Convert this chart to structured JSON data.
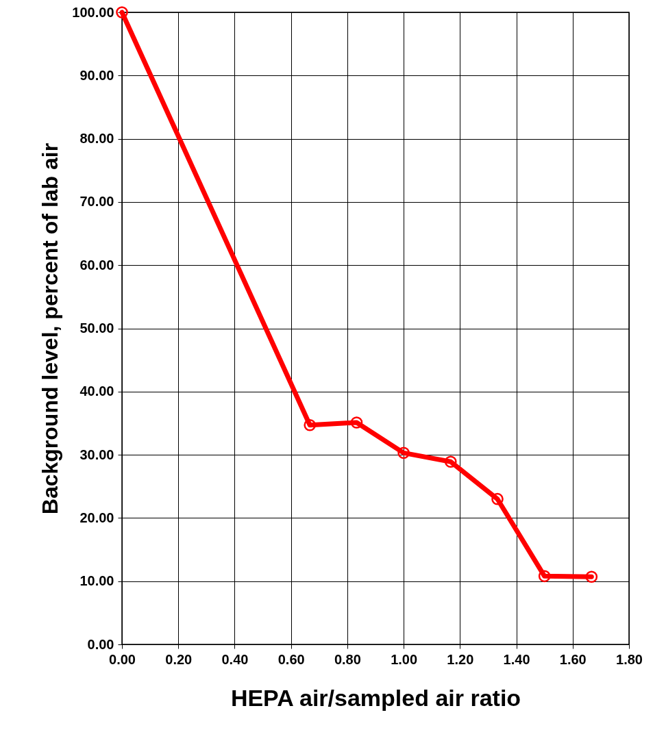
{
  "chart_data": {
    "type": "line",
    "xlabel": "HEPA air/sampled air ratio",
    "ylabel": "Background level, percent of lab air",
    "x": [
      0,
      0.667,
      0.833,
      1.0,
      1.167,
      1.333,
      1.5,
      1.667
    ],
    "series": [
      {
        "color": "#ff0000",
        "values": [
          100,
          34.7,
          35.1,
          30.3,
          28.9,
          23.0,
          10.8,
          10.7
        ]
      }
    ],
    "xlim": [
      0,
      1.8
    ],
    "xticks": [
      {
        "value": 0,
        "label": "0.00"
      },
      {
        "value": 0.2,
        "label": "0.20"
      },
      {
        "value": 0.4,
        "label": "0.40"
      },
      {
        "value": 0.6,
        "label": "0.60"
      },
      {
        "value": 0.8,
        "label": "0.80"
      },
      {
        "value": 1.0,
        "label": "1.00"
      },
      {
        "value": 1.2,
        "label": "1.20"
      },
      {
        "value": 1.4,
        "label": "1.40"
      },
      {
        "value": 1.6,
        "label": "1.60"
      },
      {
        "value": 1.8,
        "label": "1.80"
      }
    ],
    "ylim": [
      0,
      100
    ],
    "yticks": [
      {
        "value": 0,
        "label": "0.00"
      },
      {
        "value": 10,
        "label": "10.00"
      },
      {
        "value": 20,
        "label": "20.00"
      },
      {
        "value": 30,
        "label": "30.00"
      },
      {
        "value": 40,
        "label": "40.00"
      },
      {
        "value": 50,
        "label": "50.00"
      },
      {
        "value": 60,
        "label": "60.00"
      },
      {
        "value": 70,
        "label": "70.00"
      },
      {
        "value": 80,
        "label": "80.00"
      },
      {
        "value": 90,
        "label": "90.00"
      },
      {
        "value": 100,
        "label": "100.00"
      }
    ],
    "grid": true,
    "marker": "circle",
    "line_style": "solid"
  }
}
